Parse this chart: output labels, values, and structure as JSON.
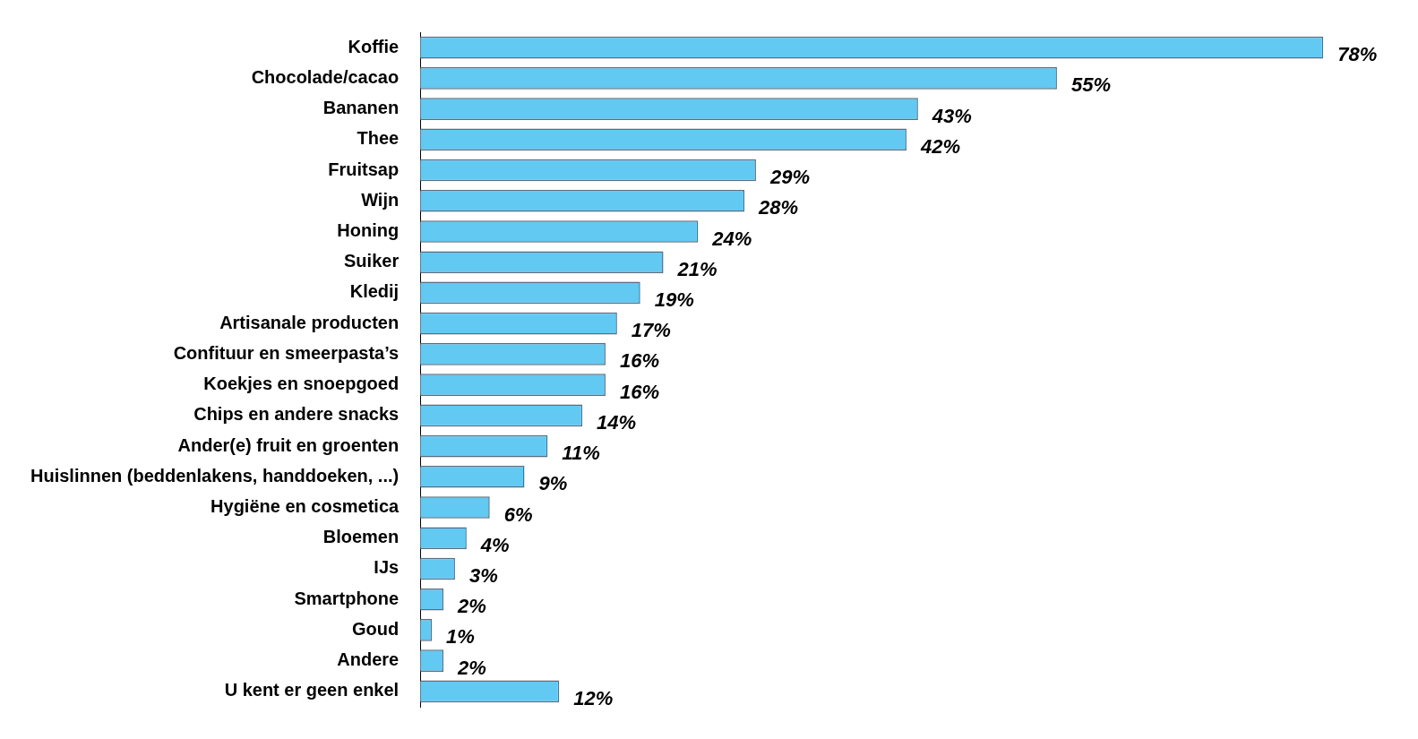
{
  "chart_data": {
    "type": "bar",
    "orientation": "horizontal",
    "categories": [
      "Koffie",
      "Chocolade/cacao",
      "Bananen",
      "Thee",
      "Fruitsap",
      "Wijn",
      "Honing",
      "Suiker",
      "Kledij",
      "Artisanale producten",
      "Confituur en smeerpasta’s",
      "Koekjes en snoepgoed",
      "Chips en andere snacks",
      "Ander(e) fruit en groenten",
      "Huislinnen (beddenlakens, handdoeken, ...)",
      "Hygiëne en cosmetica",
      "Bloemen",
      "IJs",
      "Smartphone",
      "Goud",
      "Andere",
      "U kent er geen enkel"
    ],
    "values": [
      78,
      55,
      43,
      42,
      29,
      28,
      24,
      21,
      19,
      17,
      16,
      16,
      14,
      11,
      9,
      6,
      4,
      3,
      2,
      1,
      2,
      12
    ],
    "value_labels": [
      "78%",
      "55%",
      "43%",
      "42%",
      "29%",
      "28%",
      "24%",
      "21%",
      "19%",
      "17%",
      "16%",
      "16%",
      "14%",
      "11%",
      "9%",
      "6%",
      "4%",
      "3%",
      "2%",
      "1%",
      "2%",
      "12%"
    ],
    "color": "#62c9f3",
    "grid": false,
    "tick_labels": "y"
  }
}
